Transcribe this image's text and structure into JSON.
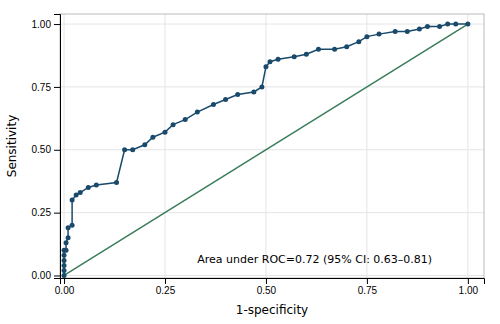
{
  "chart_data": {
    "type": "line",
    "xlabel": "1-specificity",
    "ylabel": "Sensitivity",
    "xlim": [
      -0.01,
      1.04
    ],
    "ylim": [
      -0.01,
      1.04
    ],
    "xticks": [
      {
        "value": 0.0,
        "label": "0.00"
      },
      0.25,
      {
        "value": 0.5,
        "label": "0.50"
      },
      0.75,
      {
        "value": 1.0,
        "label": "1.00"
      }
    ],
    "yticks": [
      {
        "value": 0.0,
        "label": "0.00"
      },
      0.25,
      {
        "value": 0.5,
        "label": "0.50"
      },
      0.75,
      {
        "value": 1.0,
        "label": "1.00"
      }
    ],
    "grid": true,
    "series": [
      {
        "color": "#1a4a6b",
        "marker": "circle",
        "x": [
          0.0,
          0.0,
          0.0,
          0.0,
          0.0,
          0.0,
          0.005,
          0.005,
          0.01,
          0.01,
          0.02,
          0.02,
          0.03,
          0.04,
          0.06,
          0.08,
          0.13,
          0.15,
          0.17,
          0.2,
          0.22,
          0.25,
          0.27,
          0.3,
          0.33,
          0.37,
          0.4,
          0.43,
          0.47,
          0.49,
          0.5,
          0.51,
          0.53,
          0.57,
          0.6,
          0.63,
          0.67,
          0.7,
          0.73,
          0.75,
          0.78,
          0.82,
          0.85,
          0.88,
          0.9,
          0.93,
          0.95,
          0.97,
          1.0
        ],
        "values": [
          0.0,
          0.02,
          0.04,
          0.06,
          0.08,
          0.1,
          0.1,
          0.13,
          0.15,
          0.19,
          0.2,
          0.3,
          0.32,
          0.33,
          0.35,
          0.36,
          0.37,
          0.5,
          0.5,
          0.52,
          0.55,
          0.57,
          0.6,
          0.62,
          0.65,
          0.68,
          0.7,
          0.72,
          0.73,
          0.75,
          0.83,
          0.85,
          0.86,
          0.87,
          0.88,
          0.9,
          0.9,
          0.91,
          0.93,
          0.95,
          0.96,
          0.97,
          0.97,
          0.98,
          0.99,
          0.99,
          1.0,
          1.0,
          1.0
        ]
      },
      {
        "color": "#3a7d5a",
        "x": [
          0.0,
          1.0
        ],
        "values": [
          0.0,
          1.0
        ]
      }
    ],
    "annotations": [
      {
        "text": "Area under ROC=0.72 (95% CI: 0.63–0.81)",
        "x": 0.33,
        "y": 0.05
      }
    ]
  }
}
